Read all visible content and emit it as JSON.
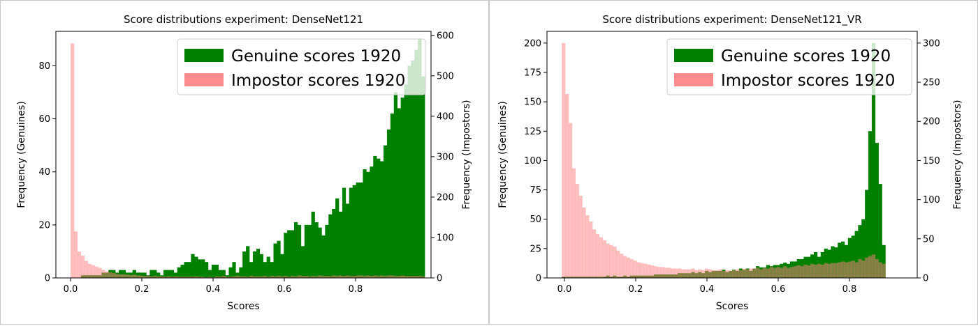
{
  "chart_data": [
    {
      "type": "bar",
      "title": "Score distributions experiment: DenseNet121",
      "xlabel": "Scores",
      "ylabel": "Frequency (Genuines)",
      "ylabel_right": "Frequency (Impostors)",
      "xlim": [
        -0.04,
        0.98
      ],
      "ylim": [
        0,
        93
      ],
      "ylim_right": [
        0,
        610
      ],
      "xticks": [
        "0.0",
        "0.2",
        "0.4",
        "0.6",
        "0.8"
      ],
      "yticks": [
        "0",
        "20",
        "40",
        "60",
        "80"
      ],
      "yticks_right": [
        "0",
        "100",
        "200",
        "300",
        "400",
        "500",
        "600"
      ],
      "legend_position": "top-right",
      "grid": false,
      "bin_start": 0.0,
      "bin_width": 0.00935,
      "series": [
        {
          "name": "Genuine scores 1920",
          "axis": "left",
          "color": "#008000",
          "values": [
            0,
            0,
            0,
            1,
            1,
            1,
            1,
            1,
            1,
            2,
            2,
            3,
            3,
            2,
            3,
            3,
            2,
            2,
            3,
            2,
            2,
            2,
            1,
            3,
            3,
            2,
            1,
            3,
            3,
            3,
            2,
            4,
            5,
            6,
            6,
            9,
            8,
            7,
            7,
            6,
            3,
            5,
            5,
            3,
            3,
            1,
            4,
            6,
            2,
            4,
            10,
            12,
            6,
            10,
            11,
            9,
            6,
            8,
            6,
            13,
            14,
            9,
            17,
            18,
            18,
            21,
            20,
            12,
            20,
            20,
            25,
            21,
            19,
            16,
            20,
            24,
            26,
            30,
            25,
            34,
            28,
            34,
            35,
            36,
            36,
            41,
            40,
            42,
            46,
            45,
            44,
            50,
            56,
            62,
            70,
            64,
            68,
            73,
            80,
            82,
            86,
            90,
            76
          ]
        },
        {
          "name": "Impostor scores 1920",
          "axis": "right",
          "color": "#ff8080",
          "values": [
            580,
            115,
            65,
            55,
            42,
            35,
            32,
            28,
            25,
            20,
            16,
            14,
            12,
            10,
            9,
            9,
            8,
            7,
            8,
            6,
            6,
            5,
            5,
            4,
            5,
            4,
            4,
            3,
            4,
            3,
            4,
            3,
            3,
            3,
            3,
            3,
            4,
            3,
            3,
            2,
            3,
            2,
            4,
            3,
            5,
            3,
            3,
            4,
            5,
            4,
            4,
            3,
            5,
            4,
            4,
            4,
            5,
            3,
            5,
            4,
            5,
            4,
            5,
            3,
            5,
            4,
            6,
            5,
            5,
            4,
            5,
            4,
            6,
            5,
            5,
            4,
            6,
            5,
            6,
            5,
            6,
            5,
            5,
            6,
            6,
            5,
            6,
            5,
            6,
            5,
            6,
            5,
            6,
            6,
            5,
            5,
            6,
            5,
            5,
            5,
            5,
            5,
            4
          ]
        }
      ]
    },
    {
      "type": "bar",
      "title": "Score distributions experiment: DenseNet121_VR",
      "xlabel": "Scores",
      "ylabel": "Frequency (Genuines)",
      "ylabel_right": "Frequency (Impostors)",
      "xlim": [
        -0.04,
        0.96
      ],
      "ylim": [
        0,
        210
      ],
      "ylim_right": [
        0,
        315
      ],
      "xticks": [
        "0.0",
        "0.2",
        "0.4",
        "0.6",
        "0.8"
      ],
      "yticks": [
        "0",
        "25",
        "50",
        "75",
        "100",
        "125",
        "150",
        "175",
        "200"
      ],
      "yticks_right": [
        "0",
        "50",
        "100",
        "150",
        "200",
        "250",
        "300"
      ],
      "legend_position": "top-right",
      "grid": false,
      "bin_start": 0.0,
      "bin_width": 0.0092,
      "series": [
        {
          "name": "Genuine scores 1920",
          "axis": "left",
          "color": "#008000",
          "values": [
            1,
            1,
            1,
            1,
            1,
            1,
            1,
            1,
            1,
            1,
            1,
            1,
            1,
            2,
            1,
            2,
            1,
            1,
            2,
            1,
            2,
            2,
            2,
            2,
            2,
            2,
            2,
            3,
            3,
            3,
            3,
            3,
            3,
            3,
            4,
            4,
            4,
            4,
            5,
            4,
            5,
            4,
            6,
            5,
            6,
            6,
            6,
            7,
            5,
            6,
            7,
            6,
            8,
            7,
            8,
            6,
            8,
            10,
            9,
            9,
            11,
            10,
            11,
            11,
            12,
            13,
            12,
            14,
            14,
            16,
            16,
            18,
            18,
            20,
            22,
            18,
            22,
            25,
            24,
            27,
            26,
            30,
            31,
            28,
            34,
            36,
            40,
            45,
            50,
            75,
            125,
            200,
            115,
            80,
            28
          ]
        },
        {
          "name": "Impostor scores 1920",
          "axis": "right",
          "color": "#ff8080",
          "values": [
            300,
            235,
            198,
            140,
            120,
            105,
            90,
            80,
            72,
            62,
            56,
            52,
            48,
            44,
            42,
            40,
            35,
            31,
            28,
            26,
            24,
            22,
            20,
            19,
            18,
            17,
            16,
            15,
            14,
            14,
            13,
            13,
            12,
            12,
            12,
            11,
            11,
            11,
            12,
            10,
            11,
            10,
            12,
            11,
            10,
            10,
            11,
            9,
            10,
            9,
            10,
            11,
            10,
            12,
            11,
            12,
            12,
            13,
            11,
            13,
            12,
            14,
            13,
            14,
            13,
            15,
            13,
            14,
            15,
            16,
            15,
            17,
            16,
            18,
            17,
            18,
            17,
            19,
            18,
            19,
            19,
            20,
            21,
            20,
            21,
            22,
            20,
            24,
            22,
            26,
            28,
            30,
            24,
            20,
            18
          ]
        }
      ]
    }
  ]
}
